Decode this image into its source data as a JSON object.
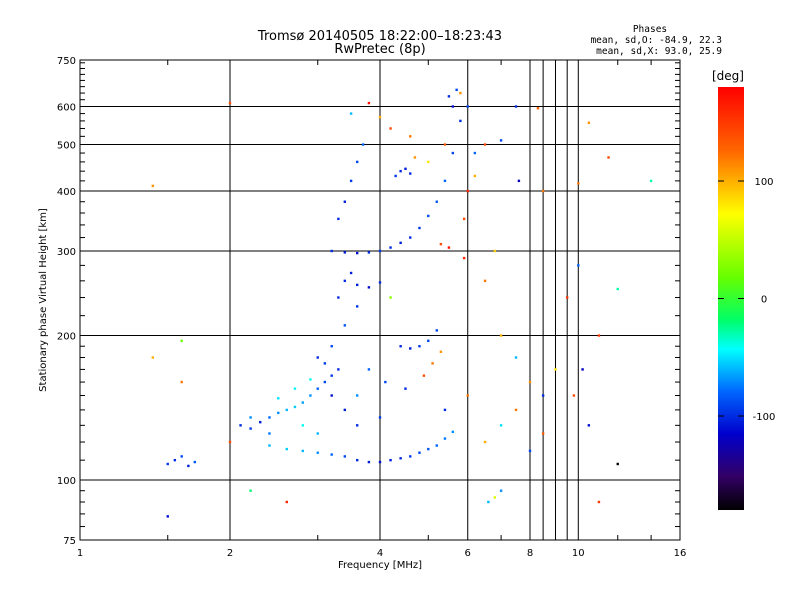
{
  "header": {
    "title_line1": "Tromsø 20140505 18:22:00–18:23:43",
    "title_line2": "RwPretec (8p)",
    "phases_label": "Phases",
    "phases_o": "mean, sd,O: -84.9, 22.3",
    "phases_x": "mean, sd,X:  93.0, 25.9"
  },
  "chart_data": {
    "type": "scatter",
    "xlabel": "Frequency [MHz]",
    "ylabel": "Stationary phase Virtual Height [km]",
    "x_scale": "log",
    "y_scale": "log",
    "xlim": [
      1,
      16
    ],
    "ylim": [
      75,
      750
    ],
    "x_ticks": [
      1,
      2,
      4,
      6,
      8,
      10,
      16
    ],
    "y_ticks": [
      75,
      100,
      200,
      300,
      400,
      500,
      600,
      750
    ],
    "grid": true,
    "colorbar": {
      "label": "[deg]",
      "range": [
        -180,
        180
      ],
      "ticks": [
        100,
        0,
        -100
      ]
    },
    "series": [
      {
        "values": [
          [
            1.5,
            108,
            -95
          ],
          [
            1.55,
            110,
            -100
          ],
          [
            1.6,
            112,
            -90
          ],
          [
            1.65,
            107,
            -105
          ],
          [
            1.7,
            109,
            -85
          ],
          [
            1.5,
            84,
            -110
          ],
          [
            2.1,
            130,
            -100
          ],
          [
            2.2,
            128,
            -95
          ],
          [
            2.3,
            132,
            -105
          ],
          [
            2.4,
            135,
            -80
          ],
          [
            2.5,
            138,
            -70
          ],
          [
            2.6,
            140,
            -60
          ],
          [
            2.7,
            142,
            -55
          ],
          [
            2.8,
            145,
            -65
          ],
          [
            2.9,
            150,
            -70
          ],
          [
            3.0,
            155,
            -80
          ],
          [
            3.1,
            160,
            -90
          ],
          [
            3.2,
            165,
            -95
          ],
          [
            3.3,
            170,
            -100
          ],
          [
            2.4,
            118,
            -60
          ],
          [
            2.6,
            116,
            -55
          ],
          [
            2.8,
            115,
            -60
          ],
          [
            3.0,
            114,
            -70
          ],
          [
            3.2,
            113,
            -80
          ],
          [
            3.4,
            112,
            -90
          ],
          [
            3.6,
            110,
            -100
          ],
          [
            3.8,
            109,
            -105
          ],
          [
            4.0,
            109,
            -110
          ],
          [
            4.2,
            110,
            -105
          ],
          [
            4.4,
            111,
            -100
          ],
          [
            4.6,
            112,
            -95
          ],
          [
            4.8,
            114,
            -90
          ],
          [
            5.0,
            116,
            -85
          ],
          [
            5.2,
            118,
            -80
          ],
          [
            5.4,
            122,
            -75
          ],
          [
            5.6,
            126,
            -70
          ],
          [
            3.2,
            300,
            -100
          ],
          [
            3.4,
            298,
            -105
          ],
          [
            3.6,
            297,
            -110
          ],
          [
            3.8,
            298,
            -100
          ],
          [
            4.0,
            300,
            -95
          ],
          [
            4.2,
            305,
            -100
          ],
          [
            4.4,
            312,
            -105
          ],
          [
            4.6,
            320,
            -100
          ],
          [
            4.8,
            335,
            -95
          ],
          [
            5.0,
            355,
            -90
          ],
          [
            5.2,
            380,
            -85
          ],
          [
            5.4,
            420,
            -80
          ],
          [
            5.6,
            480,
            -90
          ],
          [
            5.8,
            560,
            -100
          ],
          [
            3.3,
            350,
            -100
          ],
          [
            3.4,
            380,
            -105
          ],
          [
            3.5,
            420,
            -95
          ],
          [
            3.6,
            460,
            -90
          ],
          [
            3.7,
            500,
            -80
          ],
          [
            3.4,
            260,
            -100
          ],
          [
            3.6,
            255,
            -105
          ],
          [
            3.8,
            252,
            -110
          ],
          [
            4.0,
            258,
            -100
          ],
          [
            4.4,
            440,
            -100
          ],
          [
            4.5,
            445,
            -105
          ],
          [
            4.6,
            435,
            -100
          ],
          [
            4.3,
            430,
            -95
          ],
          [
            4.4,
            190,
            -100
          ],
          [
            4.6,
            188,
            -105
          ],
          [
            4.8,
            190,
            -95
          ],
          [
            5.0,
            195,
            -90
          ],
          [
            3.0,
            180,
            -100
          ],
          [
            3.2,
            190,
            -90
          ],
          [
            3.4,
            210,
            -85
          ],
          [
            3.6,
            230,
            -95
          ],
          [
            3.3,
            240,
            -100
          ],
          [
            3.5,
            270,
            -105
          ],
          [
            4.2,
            240,
            30
          ],
          [
            4.6,
            520,
            120
          ],
          [
            4.7,
            470,
            110
          ],
          [
            5.0,
            460,
            80
          ],
          [
            5.4,
            500,
            130
          ],
          [
            6.2,
            430,
            100
          ],
          [
            6.5,
            260,
            120
          ],
          [
            6.8,
            300,
            90
          ],
          [
            7.0,
            200,
            100
          ],
          [
            7.5,
            180,
            -60
          ],
          [
            8.0,
            160,
            110
          ],
          [
            8.5,
            150,
            -100
          ],
          [
            9.0,
            170,
            80
          ],
          [
            6.0,
            150,
            120
          ],
          [
            6.5,
            120,
            100
          ],
          [
            7.0,
            130,
            -50
          ],
          [
            7.5,
            140,
            120
          ],
          [
            8.0,
            115,
            -90
          ],
          [
            8.5,
            125,
            130
          ],
          [
            6.8,
            92,
            60
          ],
          [
            7.0,
            95,
            -70
          ],
          [
            6.6,
            90,
            -60
          ],
          [
            2.0,
            610,
            140
          ],
          [
            2.0,
            120,
            140
          ],
          [
            1.4,
            410,
            110
          ],
          [
            1.6,
            195,
            20
          ],
          [
            1.6,
            160,
            120
          ],
          [
            1.4,
            180,
            100
          ],
          [
            2.6,
            90,
            160
          ],
          [
            2.2,
            95,
            -20
          ],
          [
            5.9,
            290,
            160
          ],
          [
            5.5,
            305,
            170
          ],
          [
            5.3,
            310,
            140
          ],
          [
            12.0,
            250,
            -30
          ],
          [
            14.0,
            420,
            -30
          ],
          [
            11.0,
            200,
            150
          ],
          [
            10.5,
            555,
            110
          ],
          [
            11.5,
            470,
            140
          ],
          [
            12.0,
            108,
            -180
          ],
          [
            10.0,
            280,
            -80
          ],
          [
            10.0,
            415,
            120
          ],
          [
            9.5,
            240,
            150
          ],
          [
            8.5,
            400,
            120
          ],
          [
            7.5,
            600,
            -100
          ],
          [
            7.0,
            510,
            -90
          ],
          [
            6.5,
            500,
            140
          ],
          [
            6.2,
            480,
            -80
          ],
          [
            6.0,
            600,
            -90
          ],
          [
            7.6,
            420,
            -120
          ],
          [
            8.3,
            595,
            130
          ],
          [
            10.2,
            170,
            -120
          ],
          [
            9.8,
            150,
            140
          ],
          [
            10.5,
            130,
            -110
          ],
          [
            11.0,
            90,
            150
          ],
          [
            3.5,
            580,
            -60
          ],
          [
            3.8,
            610,
            170
          ],
          [
            4.2,
            540,
            140
          ],
          [
            4.0,
            570,
            100
          ],
          [
            2.8,
            130,
            -40
          ],
          [
            3.0,
            125,
            -60
          ],
          [
            3.6,
            150,
            -70
          ],
          [
            3.8,
            170,
            -80
          ],
          [
            4.1,
            160,
            -90
          ],
          [
            4.5,
            155,
            -100
          ],
          [
            4.9,
            165,
            140
          ],
          [
            5.1,
            175,
            120
          ],
          [
            5.3,
            185,
            110
          ],
          [
            5.2,
            205,
            -90
          ],
          [
            5.4,
            140,
            -100
          ],
          [
            4.0,
            135,
            -95
          ],
          [
            3.6,
            130,
            -100
          ],
          [
            3.4,
            140,
            -105
          ],
          [
            3.2,
            150,
            -110
          ],
          [
            2.2,
            135,
            -70
          ],
          [
            2.4,
            125,
            -75
          ],
          [
            2.5,
            148,
            -50
          ],
          [
            2.7,
            155,
            -45
          ],
          [
            2.9,
            162,
            -40
          ],
          [
            3.1,
            175,
            -95
          ],
          [
            5.6,
            600,
            -110
          ],
          [
            5.5,
            630,
            -100
          ],
          [
            5.7,
            650,
            -90
          ],
          [
            5.8,
            640,
            110
          ],
          [
            6.0,
            400,
            160
          ],
          [
            5.9,
            350,
            140
          ]
        ]
      }
    ]
  }
}
